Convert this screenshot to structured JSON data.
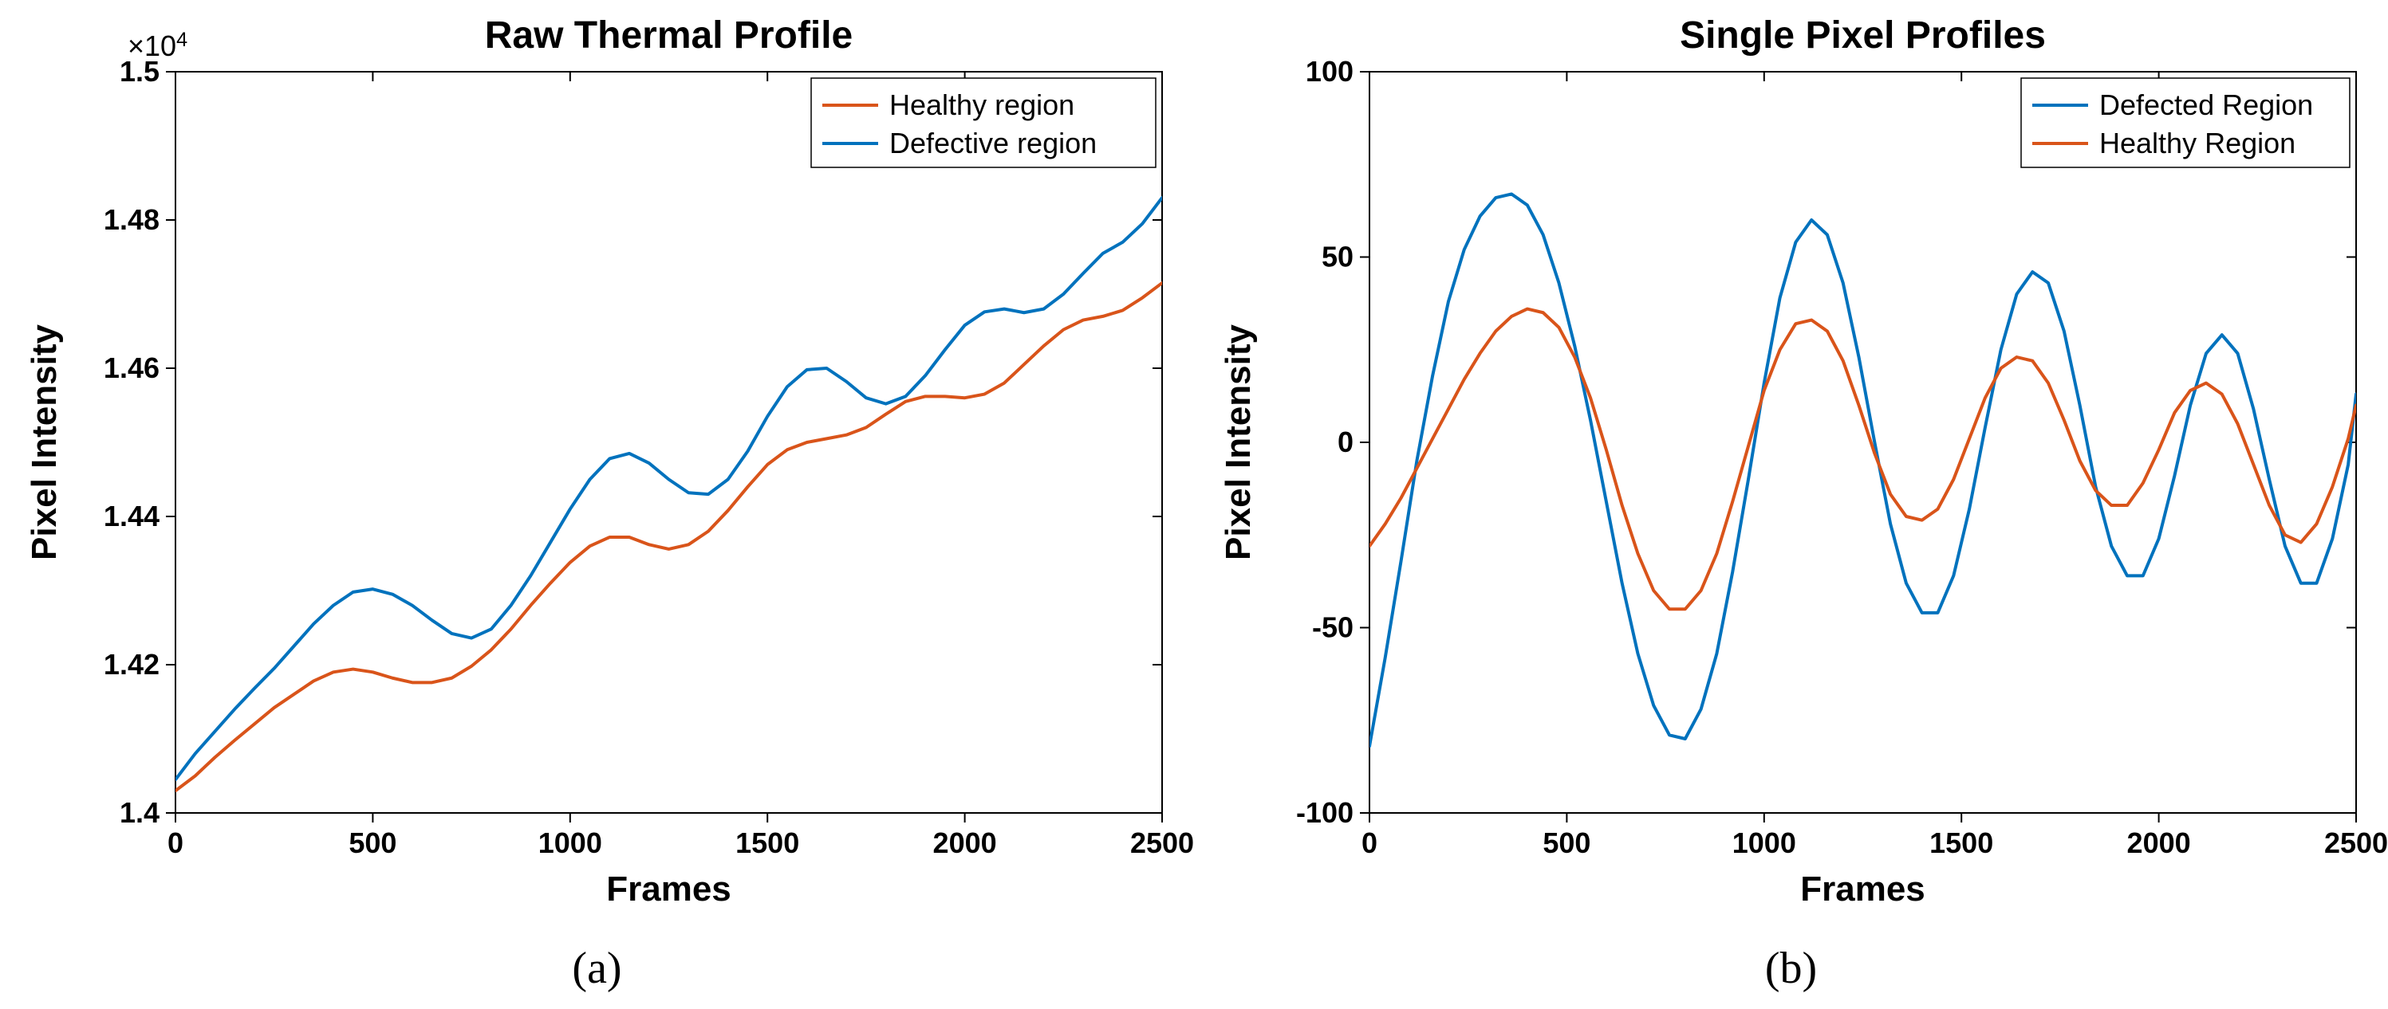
{
  "global": {
    "background_color": "#ffffff",
    "axis_color": "#000000",
    "tick_fontsize": 36,
    "tick_fontweight": "bold",
    "label_fontsize": 44,
    "label_fontweight": "bold",
    "title_fontsize": 48,
    "title_fontweight": "bold",
    "legend_fontsize": 36,
    "legend_box_stroke": "#000000",
    "legend_box_fill": "#ffffff",
    "line_width": 4,
    "sublabel_fontsize": 56
  },
  "panel_a": {
    "title": "Raw Thermal Profile",
    "xlabel": "Frames",
    "ylabel": "Pixel Intensity",
    "sublabel": "(a)",
    "xlim": [
      0,
      2500
    ],
    "ylim": [
      1.4,
      1.5
    ],
    "y_exponent_label": "×10",
    "y_exponent_sup": "4",
    "xticks": [
      0,
      500,
      1000,
      1500,
      2000,
      2500
    ],
    "yticks": [
      1.4,
      1.42,
      1.44,
      1.46,
      1.48,
      1.5
    ],
    "ytick_labels": [
      "1.4",
      "1.42",
      "1.44",
      "1.46",
      "1.48",
      "1.5"
    ],
    "legend": {
      "position": "top-right",
      "items": [
        {
          "label": "Healthy region",
          "color": "#d9541a"
        },
        {
          "label": "Defective region",
          "color": "#0072bd"
        }
      ]
    },
    "series": [
      {
        "name": "Healthy region",
        "color": "#d9541a",
        "points": [
          [
            0,
            1.403
          ],
          [
            50,
            1.405
          ],
          [
            100,
            1.4075
          ],
          [
            150,
            1.4098
          ],
          [
            200,
            1.412
          ],
          [
            250,
            1.4142
          ],
          [
            300,
            1.416
          ],
          [
            350,
            1.4178
          ],
          [
            400,
            1.419
          ],
          [
            450,
            1.4194
          ],
          [
            500,
            1.419
          ],
          [
            550,
            1.4182
          ],
          [
            600,
            1.4176
          ],
          [
            650,
            1.4176
          ],
          [
            700,
            1.4182
          ],
          [
            750,
            1.4198
          ],
          [
            800,
            1.422
          ],
          [
            850,
            1.4248
          ],
          [
            900,
            1.428
          ],
          [
            950,
            1.431
          ],
          [
            1000,
            1.4338
          ],
          [
            1050,
            1.436
          ],
          [
            1100,
            1.4372
          ],
          [
            1150,
            1.4372
          ],
          [
            1200,
            1.4362
          ],
          [
            1250,
            1.4356
          ],
          [
            1300,
            1.4362
          ],
          [
            1350,
            1.438
          ],
          [
            1400,
            1.4408
          ],
          [
            1450,
            1.444
          ],
          [
            1500,
            1.447
          ],
          [
            1550,
            1.449
          ],
          [
            1600,
            1.45
          ],
          [
            1650,
            1.4505
          ],
          [
            1700,
            1.451
          ],
          [
            1750,
            1.452
          ],
          [
            1800,
            1.4538
          ],
          [
            1850,
            1.4555
          ],
          [
            1900,
            1.4562
          ],
          [
            1950,
            1.4562
          ],
          [
            2000,
            1.456
          ],
          [
            2050,
            1.4565
          ],
          [
            2100,
            1.458
          ],
          [
            2150,
            1.4605
          ],
          [
            2200,
            1.463
          ],
          [
            2250,
            1.4652
          ],
          [
            2300,
            1.4665
          ],
          [
            2350,
            1.467
          ],
          [
            2400,
            1.4678
          ],
          [
            2450,
            1.4695
          ],
          [
            2500,
            1.4715
          ]
        ]
      },
      {
        "name": "Defective region",
        "color": "#0072bd",
        "points": [
          [
            0,
            1.4045
          ],
          [
            50,
            1.408
          ],
          [
            100,
            1.411
          ],
          [
            150,
            1.414
          ],
          [
            200,
            1.4168
          ],
          [
            250,
            1.4195
          ],
          [
            300,
            1.4225
          ],
          [
            350,
            1.4255
          ],
          [
            400,
            1.428
          ],
          [
            450,
            1.4298
          ],
          [
            500,
            1.4302
          ],
          [
            550,
            1.4295
          ],
          [
            600,
            1.428
          ],
          [
            650,
            1.426
          ],
          [
            700,
            1.4242
          ],
          [
            750,
            1.4236
          ],
          [
            800,
            1.4248
          ],
          [
            850,
            1.428
          ],
          [
            900,
            1.432
          ],
          [
            950,
            1.4365
          ],
          [
            1000,
            1.441
          ],
          [
            1050,
            1.445
          ],
          [
            1100,
            1.4478
          ],
          [
            1150,
            1.4485
          ],
          [
            1200,
            1.4472
          ],
          [
            1250,
            1.445
          ],
          [
            1300,
            1.4432
          ],
          [
            1350,
            1.443
          ],
          [
            1400,
            1.445
          ],
          [
            1450,
            1.4488
          ],
          [
            1500,
            1.4535
          ],
          [
            1550,
            1.4575
          ],
          [
            1600,
            1.4598
          ],
          [
            1650,
            1.46
          ],
          [
            1700,
            1.4582
          ],
          [
            1750,
            1.456
          ],
          [
            1800,
            1.4552
          ],
          [
            1850,
            1.4562
          ],
          [
            1900,
            1.459
          ],
          [
            1950,
            1.4625
          ],
          [
            2000,
            1.4658
          ],
          [
            2050,
            1.4676
          ],
          [
            2100,
            1.468
          ],
          [
            2150,
            1.4675
          ],
          [
            2200,
            1.468
          ],
          [
            2250,
            1.47
          ],
          [
            2300,
            1.4728
          ],
          [
            2350,
            1.4755
          ],
          [
            2400,
            1.477
          ],
          [
            2450,
            1.4795
          ],
          [
            2500,
            1.483
          ]
        ]
      }
    ]
  },
  "panel_b": {
    "title": "Single Pixel Profiles",
    "xlabel": "Frames",
    "ylabel": "Pixel Intensity",
    "sublabel": "(b)",
    "xlim": [
      0,
      2500
    ],
    "ylim": [
      -100,
      100
    ],
    "xticks": [
      0,
      500,
      1000,
      1500,
      2000,
      2500
    ],
    "yticks": [
      -100,
      -50,
      0,
      50,
      100
    ],
    "ytick_labels": [
      "-100",
      "-50",
      "0",
      "50",
      "100"
    ],
    "legend": {
      "position": "top-right",
      "items": [
        {
          "label": "Defected Region",
          "color": "#0072bd"
        },
        {
          "label": "Healthy Region",
          "color": "#d9541a"
        }
      ]
    },
    "series": [
      {
        "name": "Defected Region",
        "color": "#0072bd",
        "points": [
          [
            0,
            -82
          ],
          [
            40,
            -58
          ],
          [
            80,
            -32
          ],
          [
            120,
            -5
          ],
          [
            160,
            18
          ],
          [
            200,
            38
          ],
          [
            240,
            52
          ],
          [
            280,
            61
          ],
          [
            320,
            66
          ],
          [
            360,
            67
          ],
          [
            400,
            64
          ],
          [
            440,
            56
          ],
          [
            480,
            43
          ],
          [
            520,
            26
          ],
          [
            560,
            6
          ],
          [
            600,
            -16
          ],
          [
            640,
            -38
          ],
          [
            680,
            -57
          ],
          [
            720,
            -71
          ],
          [
            760,
            -79
          ],
          [
            800,
            -80
          ],
          [
            840,
            -72
          ],
          [
            880,
            -57
          ],
          [
            920,
            -35
          ],
          [
            960,
            -10
          ],
          [
            1000,
            16
          ],
          [
            1040,
            39
          ],
          [
            1080,
            54
          ],
          [
            1120,
            60
          ],
          [
            1160,
            56
          ],
          [
            1200,
            43
          ],
          [
            1240,
            23
          ],
          [
            1280,
            0
          ],
          [
            1320,
            -22
          ],
          [
            1360,
            -38
          ],
          [
            1400,
            -46
          ],
          [
            1440,
            -46
          ],
          [
            1480,
            -36
          ],
          [
            1520,
            -18
          ],
          [
            1560,
            4
          ],
          [
            1600,
            25
          ],
          [
            1640,
            40
          ],
          [
            1680,
            46
          ],
          [
            1720,
            43
          ],
          [
            1760,
            30
          ],
          [
            1800,
            10
          ],
          [
            1840,
            -12
          ],
          [
            1880,
            -28
          ],
          [
            1920,
            -36
          ],
          [
            1960,
            -36
          ],
          [
            2000,
            -26
          ],
          [
            2040,
            -9
          ],
          [
            2080,
            10
          ],
          [
            2120,
            24
          ],
          [
            2160,
            29
          ],
          [
            2200,
            24
          ],
          [
            2240,
            9
          ],
          [
            2280,
            -10
          ],
          [
            2320,
            -28
          ],
          [
            2360,
            -38
          ],
          [
            2400,
            -38
          ],
          [
            2440,
            -26
          ],
          [
            2480,
            -6
          ],
          [
            2500,
            13
          ]
        ]
      },
      {
        "name": "Healthy Region",
        "color": "#d9541a",
        "points": [
          [
            0,
            -28
          ],
          [
            40,
            -22
          ],
          [
            80,
            -15
          ],
          [
            120,
            -7
          ],
          [
            160,
            1
          ],
          [
            200,
            9
          ],
          [
            240,
            17
          ],
          [
            280,
            24
          ],
          [
            320,
            30
          ],
          [
            360,
            34
          ],
          [
            400,
            36
          ],
          [
            440,
            35
          ],
          [
            480,
            31
          ],
          [
            520,
            23
          ],
          [
            560,
            12
          ],
          [
            600,
            -2
          ],
          [
            640,
            -17
          ],
          [
            680,
            -30
          ],
          [
            720,
            -40
          ],
          [
            760,
            -45
          ],
          [
            800,
            -45
          ],
          [
            840,
            -40
          ],
          [
            880,
            -30
          ],
          [
            920,
            -16
          ],
          [
            960,
            -1
          ],
          [
            1000,
            14
          ],
          [
            1040,
            25
          ],
          [
            1080,
            32
          ],
          [
            1120,
            33
          ],
          [
            1160,
            30
          ],
          [
            1200,
            22
          ],
          [
            1240,
            10
          ],
          [
            1280,
            -3
          ],
          [
            1320,
            -14
          ],
          [
            1360,
            -20
          ],
          [
            1400,
            -21
          ],
          [
            1440,
            -18
          ],
          [
            1480,
            -10
          ],
          [
            1520,
            1
          ],
          [
            1560,
            12
          ],
          [
            1600,
            20
          ],
          [
            1640,
            23
          ],
          [
            1680,
            22
          ],
          [
            1720,
            16
          ],
          [
            1760,
            6
          ],
          [
            1800,
            -5
          ],
          [
            1840,
            -13
          ],
          [
            1880,
            -17
          ],
          [
            1920,
            -17
          ],
          [
            1960,
            -11
          ],
          [
            2000,
            -2
          ],
          [
            2040,
            8
          ],
          [
            2080,
            14
          ],
          [
            2120,
            16
          ],
          [
            2160,
            13
          ],
          [
            2200,
            5
          ],
          [
            2240,
            -6
          ],
          [
            2280,
            -17
          ],
          [
            2320,
            -25
          ],
          [
            2360,
            -27
          ],
          [
            2400,
            -22
          ],
          [
            2440,
            -12
          ],
          [
            2480,
            1
          ],
          [
            2500,
            10
          ]
        ]
      }
    ]
  }
}
